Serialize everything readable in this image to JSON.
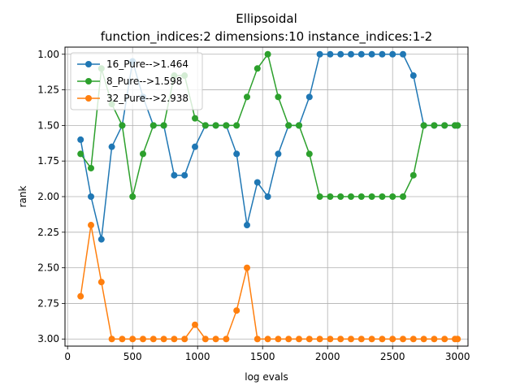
{
  "chart_data": {
    "type": "line",
    "title": "Ellipsoidal",
    "subtitle": "function_indices:2 dimensions:10 instance_indices:1-2",
    "xlabel": "log evals",
    "ylabel": "rank",
    "xlim": [
      -20,
      3080
    ],
    "ylim": [
      3.05,
      0.95
    ],
    "y_inverted": true,
    "xticks": [
      0,
      500,
      1000,
      1500,
      2000,
      2500,
      3000
    ],
    "yticks": [
      1.0,
      1.25,
      1.5,
      1.75,
      2.0,
      2.25,
      2.5,
      2.75,
      3.0
    ],
    "ytick_labels": [
      "1.00",
      "1.25",
      "1.50",
      "1.75",
      "2.00",
      "2.25",
      "2.50",
      "2.75",
      "3.00"
    ],
    "grid": true,
    "legend_position": "top-left",
    "x": [
      100,
      180,
      260,
      340,
      420,
      500,
      580,
      660,
      740,
      820,
      900,
      980,
      1060,
      1140,
      1220,
      1300,
      1380,
      1460,
      1540,
      1620,
      1700,
      1780,
      1860,
      1940,
      2020,
      2100,
      2180,
      2260,
      2340,
      2420,
      2500,
      2580,
      2660,
      2740,
      2820,
      2900,
      2980,
      3000
    ],
    "series": [
      {
        "name": "16_Pure-->1.464",
        "color": "#1f77b4",
        "values": [
          1.6,
          2.0,
          2.3,
          1.65,
          1.5,
          1.05,
          1.3,
          1.5,
          1.5,
          1.85,
          1.85,
          1.65,
          1.5,
          1.5,
          1.5,
          1.7,
          2.2,
          1.9,
          2.0,
          1.7,
          1.5,
          1.5,
          1.3,
          1.0,
          1.0,
          1.0,
          1.0,
          1.0,
          1.0,
          1.0,
          1.0,
          1.0,
          1.15,
          1.5,
          1.5,
          1.5,
          1.5,
          1.5
        ]
      },
      {
        "name": "8_Pure-->1.598",
        "color": "#2ca02c",
        "values": [
          1.7,
          1.8,
          1.1,
          1.35,
          1.5,
          2.0,
          1.7,
          1.5,
          1.5,
          1.15,
          1.15,
          1.45,
          1.5,
          1.5,
          1.5,
          1.5,
          1.3,
          1.1,
          1.0,
          1.3,
          1.5,
          1.5,
          1.7,
          2.0,
          2.0,
          2.0,
          2.0,
          2.0,
          2.0,
          2.0,
          2.0,
          2.0,
          1.85,
          1.5,
          1.5,
          1.5,
          1.5,
          1.5
        ]
      },
      {
        "name": "32_Pure-->2.938",
        "color": "#ff7f0e",
        "values": [
          2.7,
          2.2,
          2.6,
          3.0,
          3.0,
          3.0,
          3.0,
          3.0,
          3.0,
          3.0,
          3.0,
          2.9,
          3.0,
          3.0,
          3.0,
          2.8,
          2.5,
          3.0,
          3.0,
          3.0,
          3.0,
          3.0,
          3.0,
          3.0,
          3.0,
          3.0,
          3.0,
          3.0,
          3.0,
          3.0,
          3.0,
          3.0,
          3.0,
          3.0,
          3.0,
          3.0,
          3.0,
          3.0
        ]
      }
    ]
  }
}
